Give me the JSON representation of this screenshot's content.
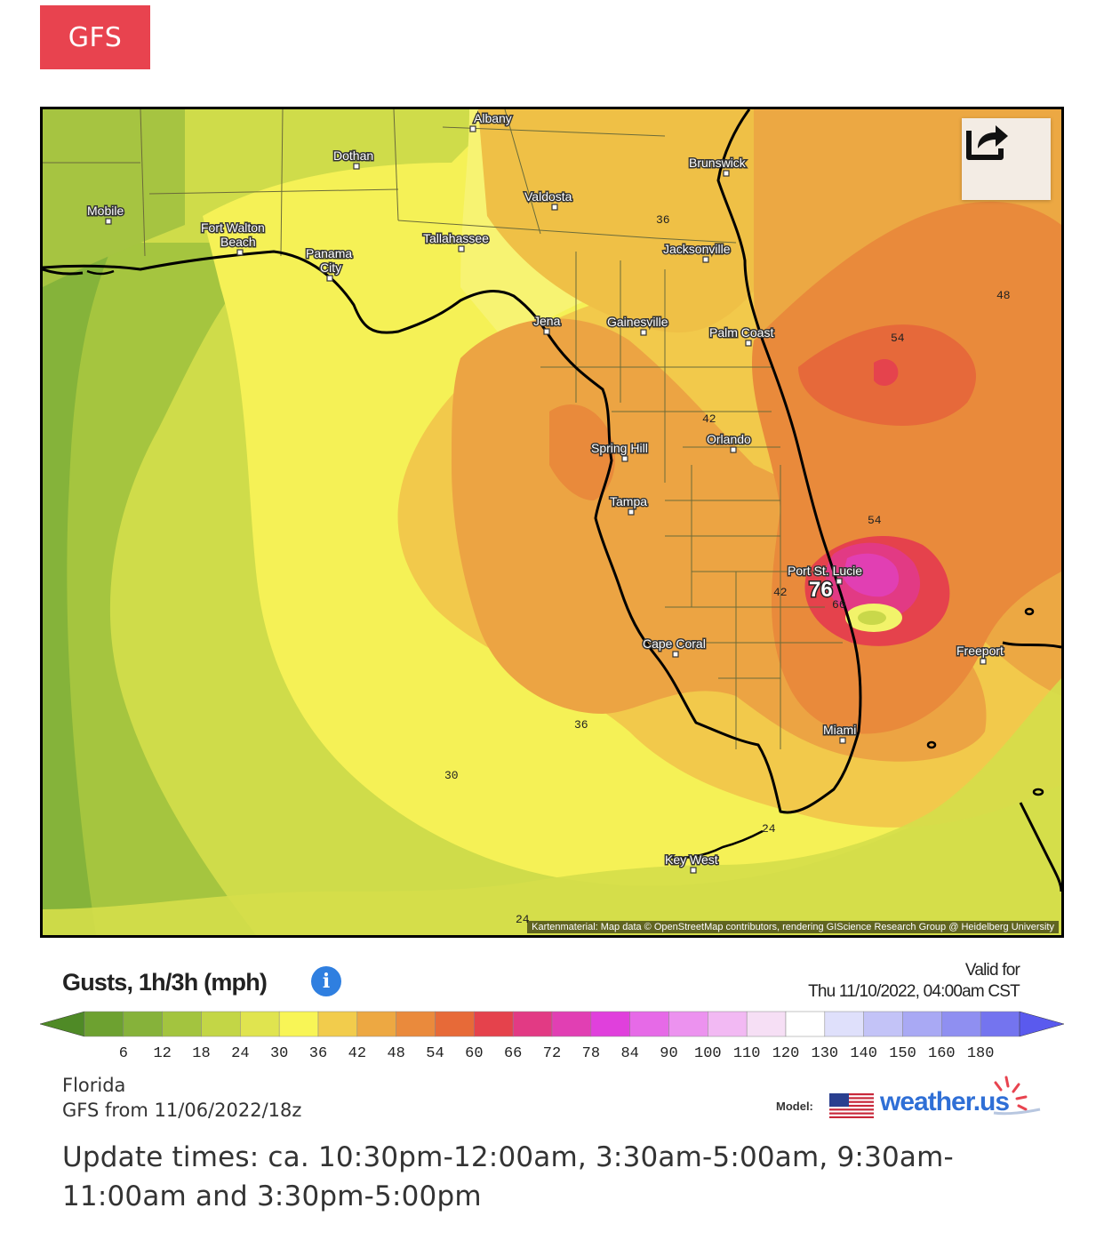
{
  "model_tab": "GFS",
  "map": {
    "attribution": "Kartenmaterial: Map data © OpenStreetMap contributors, rendering GIScience Research Group @ Heidelberg University",
    "share_icon": "share-icon",
    "cities": [
      "Albany",
      "Dothan",
      "Brunswick",
      "Valdosta",
      "Mobile",
      "Fort Walton",
      "Beach",
      "Panama",
      "City",
      "Tallahassee",
      "Jacksonville",
      "Jena",
      "Gainesville",
      "Palm Coast",
      "Spring Hill",
      "Orlando",
      "Tampa",
      "Port St. Lucie",
      "Cape Coral",
      "Freeport",
      "Miami",
      "Key West"
    ],
    "contour_labels": [
      "36",
      "48",
      "54",
      "42",
      "54",
      "42",
      "66",
      "36",
      "30",
      "24",
      "24"
    ],
    "max_label": "76"
  },
  "legend": {
    "title": "Gusts, 1h/3h (mph)",
    "info_icon": "info-icon",
    "valid_line1": "Valid for",
    "valid_line2": "Thu 11/10/2022, 04:00am CST",
    "ticks": [
      "6",
      "12",
      "18",
      "24",
      "30",
      "36",
      "42",
      "48",
      "54",
      "60",
      "66",
      "72",
      "78",
      "84",
      "90",
      "100",
      "110",
      "120",
      "130",
      "140",
      "150",
      "160",
      "180"
    ],
    "colors": [
      "#6da130",
      "#86b23a",
      "#a3c43f",
      "#c3d646",
      "#e0e44f",
      "#f8f556",
      "#f2cc4c",
      "#eda842",
      "#ea8a3c",
      "#e76a38",
      "#e5424c",
      "#e23a84",
      "#e13fb3",
      "#e040dc",
      "#e66ae7",
      "#ec92ef",
      "#f2b9f3",
      "#f6dff5",
      "#ffffff",
      "#dfe0fb",
      "#c3c3f7",
      "#a9a9f4",
      "#8f8ff1",
      "#7474ef"
    ]
  },
  "region": "Florida",
  "run": "GFS from 11/06/2022/18z",
  "model_label": "Model:",
  "brand": "weather.us",
  "update_times": "Update times: ca. 10:30pm-12:00am, 3:30am-5:00am, 9:30am-11:00am and 3:30pm-5:00pm"
}
